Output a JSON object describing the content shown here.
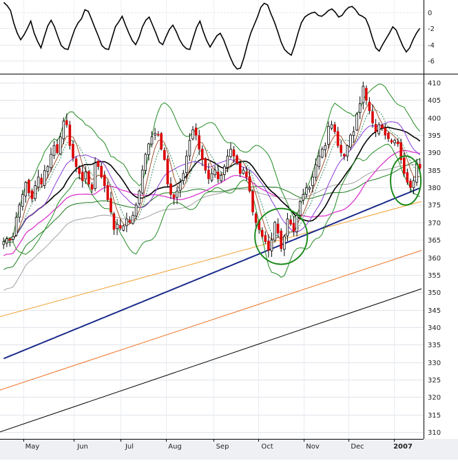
{
  "chart_data": {
    "type": "candlestick",
    "indicator_panel": {
      "type": "line",
      "ylim": [
        -7.5,
        1.5
      ],
      "y_ticks": [
        "0",
        "-2",
        "-4",
        "-6"
      ],
      "grid": true,
      "series": [
        {
          "color": "#000000",
          "values": [
            1.2,
            0.8,
            0.2,
            -1.4,
            -2.6,
            -3.4,
            -2.8,
            -2.0,
            -1.1,
            -2.6,
            -3.6,
            -4.4,
            -3.0,
            -1.7,
            -1.0,
            -1.8,
            -3.0,
            -4.1,
            -4.5,
            -4.6,
            -3.3,
            -2.1,
            -1.3,
            -0.8,
            0.3,
            0.1,
            -0.9,
            -2.0,
            -3.0,
            -4.1,
            -4.5,
            -4.6,
            -3.2,
            -1.8,
            -1.2,
            -0.5,
            -1.6,
            -2.6,
            -3.5,
            -4.0,
            -3.1,
            -1.8,
            -1.0,
            -0.6,
            -1.6,
            -2.6,
            -3.7,
            -4.0,
            -3.0,
            -2.1,
            -1.6,
            -2.4,
            -3.4,
            -4.1,
            -4.5,
            -4.6,
            -3.2,
            -1.9,
            -1.1,
            -2.4,
            -3.5,
            -4.3,
            -3.6,
            -2.9,
            -2.6,
            -3.4,
            -4.5,
            -5.6,
            -6.5,
            -7.0,
            -6.9,
            -5.6,
            -4.0,
            -2.6,
            -1.6,
            -0.6,
            0.6,
            1.1,
            0.9,
            -0.2,
            -1.2,
            -2.4,
            -3.7,
            -4.6,
            -5.0,
            -5.3,
            -4.1,
            -2.6,
            -1.3,
            -0.6,
            -0.3,
            -0.1,
            0.0,
            -0.4,
            -0.5,
            -0.2,
            0.2,
            0.4,
            0.0,
            -0.6,
            -0.4,
            0.2,
            0.6,
            0.7,
            0.3,
            -0.3,
            -0.5,
            -0.8,
            -1.8,
            -3.2,
            -4.4,
            -4.8,
            -4.0,
            -3.3,
            -2.6,
            -1.8,
            -2.2,
            -3.2,
            -4.2,
            -4.9,
            -4.4,
            -3.4,
            -2.6,
            -2.0
          ]
        }
      ]
    },
    "price_panel": {
      "ylim": [
        308,
        412
      ],
      "y_ticks": [
        "410",
        "405",
        "400",
        "395",
        "390",
        "385",
        "380",
        "375",
        "370",
        "365",
        "360",
        "355",
        "350",
        "345",
        "340",
        "335",
        "330",
        "325",
        "320",
        "315",
        "310"
      ],
      "x_ticks": [
        "May",
        "Jun",
        "Jul",
        "Aug",
        "Sep",
        "Oct",
        "Nov",
        "Dec",
        "2007"
      ],
      "grid": true,
      "close": [
        364.5,
        365.3,
        365.0,
        366.0,
        371.5,
        375.0,
        378.0,
        381.5,
        378.5,
        376.8,
        380.5,
        383.0,
        381.0,
        384.8,
        386.0,
        389.5,
        392.0,
        390.0,
        394.5,
        399.0,
        398.0,
        392.0,
        388.5,
        386.0,
        384.0,
        382.0,
        384.5,
        381.0,
        379.5,
        387.0,
        386.0,
        383.0,
        380.5,
        376.5,
        373.0,
        368.0,
        369.5,
        368.3,
        369.0,
        371.0,
        370.0,
        372.0,
        375.0,
        379.0,
        385.0,
        389.5,
        392.5,
        394.5,
        395.5,
        395.0,
        391.0,
        388.0,
        381.0,
        378.0,
        377.0,
        379.0,
        381.5,
        384.0,
        389.0,
        393.5,
        396.5,
        395.0,
        391.0,
        388.0,
        385.0,
        382.5,
        384.0,
        385.0,
        382.5,
        383.5,
        386.0,
        389.0,
        391.0,
        389.0,
        387.0,
        384.0,
        385.0,
        383.0,
        379.0,
        373.0,
        370.0,
        368.0,
        366.0,
        364.5,
        362.0,
        365.0,
        370.0,
        367.0,
        362.5,
        366.0,
        371.0,
        369.5,
        367.5,
        372.0,
        376.0,
        378.0,
        380.0,
        380.0,
        383.0,
        386.5,
        389.0,
        391.0,
        392.0,
        397.5,
        398.0,
        396.0,
        392.0,
        390.0,
        389.0,
        392.0,
        395.0,
        396.0,
        401.0,
        404.0,
        409.0,
        405.0,
        402.0,
        398.5,
        396.0,
        398.0,
        397.0,
        395.0,
        394.0,
        393.0,
        393.5,
        392.5,
        388.0,
        384.0,
        381.5,
        380.0,
        382.0,
        387.0,
        385.5
      ]
    }
  }
}
